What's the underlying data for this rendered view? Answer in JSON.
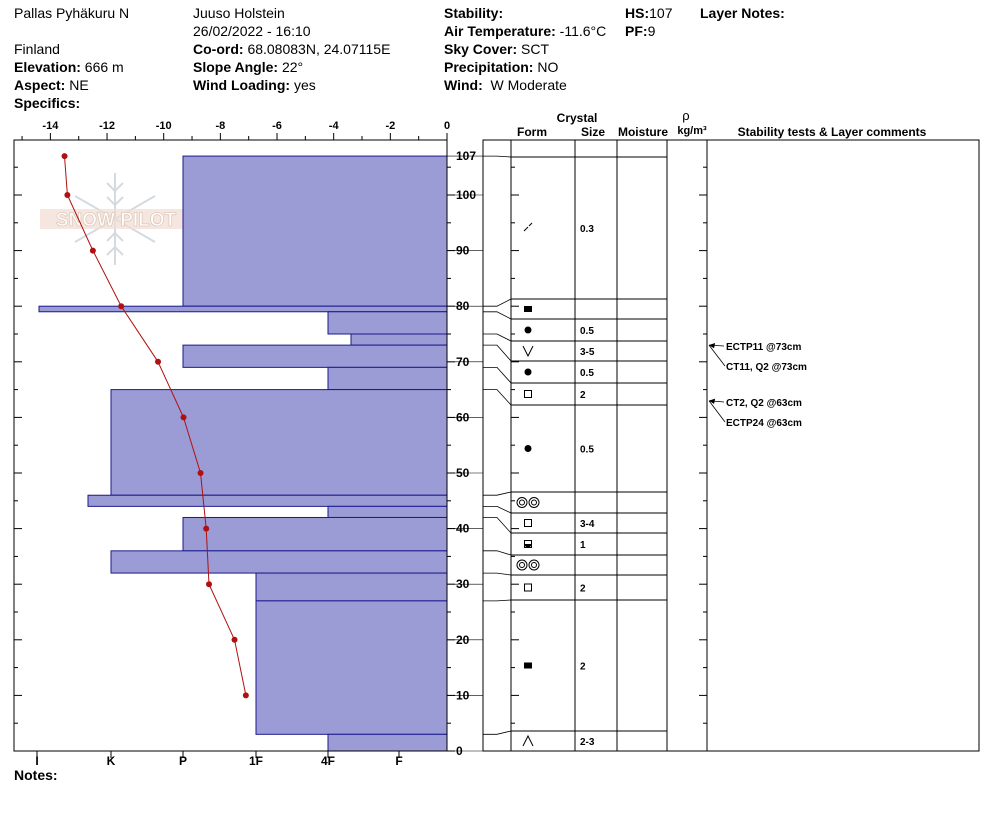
{
  "header": {
    "location": "Pallas Pyhäkuru N",
    "country": "Finland",
    "observer": "Juuso Holstein",
    "datetime": "26/02/2022 - 16:10",
    "elevation_label": "Elevation:",
    "elevation": "666 m",
    "aspect_label": "Aspect:",
    "aspect": "NE",
    "specifics_label": "Specifics:",
    "coord_label": "Co-ord:",
    "coord": "68.08083N, 24.07115E",
    "slope_label": "Slope Angle:",
    "slope": "22°",
    "wind_loading_label": "Wind Loading:",
    "wind_loading": "yes",
    "stability_label": "Stability:",
    "air_temp_label": "Air Temperature:",
    "air_temp": "-11.6°C",
    "sky_label": "Sky Cover:",
    "sky": "SCT",
    "precip_label": "Precipitation:",
    "precip": "NO",
    "wind_label": "Wind:",
    "wind": "W Moderate",
    "hs_label": "HS:",
    "hs": "107",
    "pf_label": "PF:",
    "pf": "9",
    "layer_notes_label": "Layer Notes:"
  },
  "notes_label": "Notes:",
  "watermark": "SNOW PILOT",
  "colors": {
    "hardness_fill": "#9b9bd6",
    "hardness_stroke": "#1a1a8c",
    "temp": "#b01010"
  },
  "chart_data": {
    "type": "snow_profile",
    "depth_axis": {
      "min": 0,
      "max": 107,
      "ticks": [
        0,
        10,
        20,
        30,
        40,
        50,
        60,
        70,
        80,
        90,
        100,
        107
      ]
    },
    "temp_axis": {
      "min": -15,
      "max": 0,
      "ticks": [
        -14,
        -12,
        -10,
        -8,
        -6,
        -4,
        -2,
        0
      ]
    },
    "hardness_axis": {
      "labels": [
        "I",
        "K",
        "P",
        "1F",
        "4F",
        "F"
      ]
    },
    "columns": {
      "crystal": "Crystal",
      "form": "Form",
      "size": "Size",
      "moisture": "Moisture",
      "density_symbol": "ρ",
      "density_unit": "kg/m³",
      "comments": "Stability tests & Layer comments"
    },
    "layers": [
      {
        "top": 107,
        "bottom": 80,
        "hardness": "P",
        "form": "decomposing",
        "size": "0.3"
      },
      {
        "top": 80,
        "bottom": 79,
        "hardness": "I-",
        "form": "mf",
        "size": ""
      },
      {
        "top": 79,
        "bottom": 75,
        "hardness": "4F",
        "form": "rounded",
        "size": "0.5"
      },
      {
        "top": 75,
        "bottom": 73,
        "hardness": "4F-",
        "form": "depth_hoar",
        "size": "3-5"
      },
      {
        "top": 73,
        "bottom": 69,
        "hardness": "P",
        "form": "rounded",
        "size": "0.5"
      },
      {
        "top": 69,
        "bottom": 65,
        "hardness": "4F",
        "form": "faceted",
        "size": "2"
      },
      {
        "top": 65,
        "bottom": 46,
        "hardness": "K",
        "form": "rounded",
        "size": "0.5"
      },
      {
        "top": 46,
        "bottom": 44,
        "hardness": "K-",
        "form": "melt_forms",
        "size": ""
      },
      {
        "top": 44,
        "bottom": 42,
        "hardness": "4F",
        "form": "faceted",
        "size": "3-4"
      },
      {
        "top": 42,
        "bottom": 36,
        "hardness": "P",
        "form": "rounding_faceted",
        "size": "1"
      },
      {
        "top": 36,
        "bottom": 32,
        "hardness": "K",
        "form": "melt_forms",
        "size": ""
      },
      {
        "top": 32,
        "bottom": 27,
        "hardness": "1F",
        "form": "faceted",
        "size": "2"
      },
      {
        "top": 27,
        "bottom": 3,
        "hardness": "1F",
        "form": "mf",
        "size": "2"
      },
      {
        "top": 3,
        "bottom": 0,
        "hardness": "4F",
        "form": "depth_hoar_cup",
        "size": "2-3"
      }
    ],
    "temperatures": [
      {
        "depth": 107,
        "temp": -13.5
      },
      {
        "depth": 100,
        "temp": -13.4
      },
      {
        "depth": 90,
        "temp": -12.5
      },
      {
        "depth": 80,
        "temp": -11.5
      },
      {
        "depth": 70,
        "temp": -10.2
      },
      {
        "depth": 60,
        "temp": -9.3
      },
      {
        "depth": 50,
        "temp": -8.7
      },
      {
        "depth": 40,
        "temp": -8.5
      },
      {
        "depth": 30,
        "temp": -8.4
      },
      {
        "depth": 20,
        "temp": -7.5
      },
      {
        "depth": 10,
        "temp": -7.1
      }
    ],
    "tests": [
      {
        "text": "ECTP11 @73cm",
        "depth": 73
      },
      {
        "text": "CT11, Q2 @73cm",
        "depth": 73
      },
      {
        "text": "CT2, Q2 @63cm",
        "depth": 63
      },
      {
        "text": "ECTP24 @63cm",
        "depth": 63
      }
    ]
  }
}
